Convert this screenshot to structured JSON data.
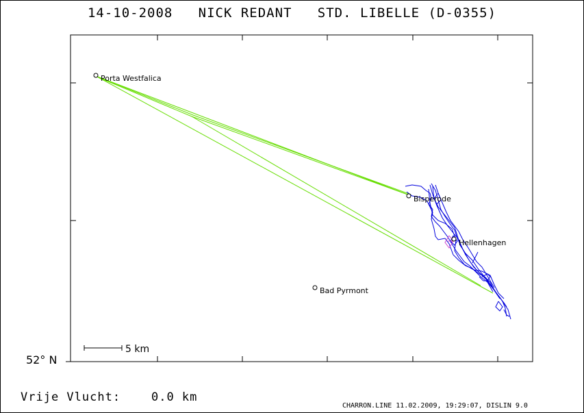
{
  "header": {
    "title": "14-10-2008   NICK REDANT   STD. LIBELLE (D-0355)"
  },
  "map": {
    "latitude_label": "52° N",
    "scale_bar_label": "5 km",
    "places": [
      {
        "name": "Porta Westfalica"
      },
      {
        "name": "Bisperode"
      },
      {
        "name": "Hellenhagen"
      },
      {
        "name": "Bad Pyrmont"
      }
    ],
    "colors": {
      "frame": "#000000",
      "task_line": "#66dd00",
      "flight_track": "#0000dd",
      "start_marker": "#cc44cc"
    }
  },
  "footer": {
    "free_flight": "Vrije Vlucht:    0.0 km",
    "credits": "CHARRON.LINE 11.02.2009, 19:29:07, DISLIN 9.0"
  }
}
